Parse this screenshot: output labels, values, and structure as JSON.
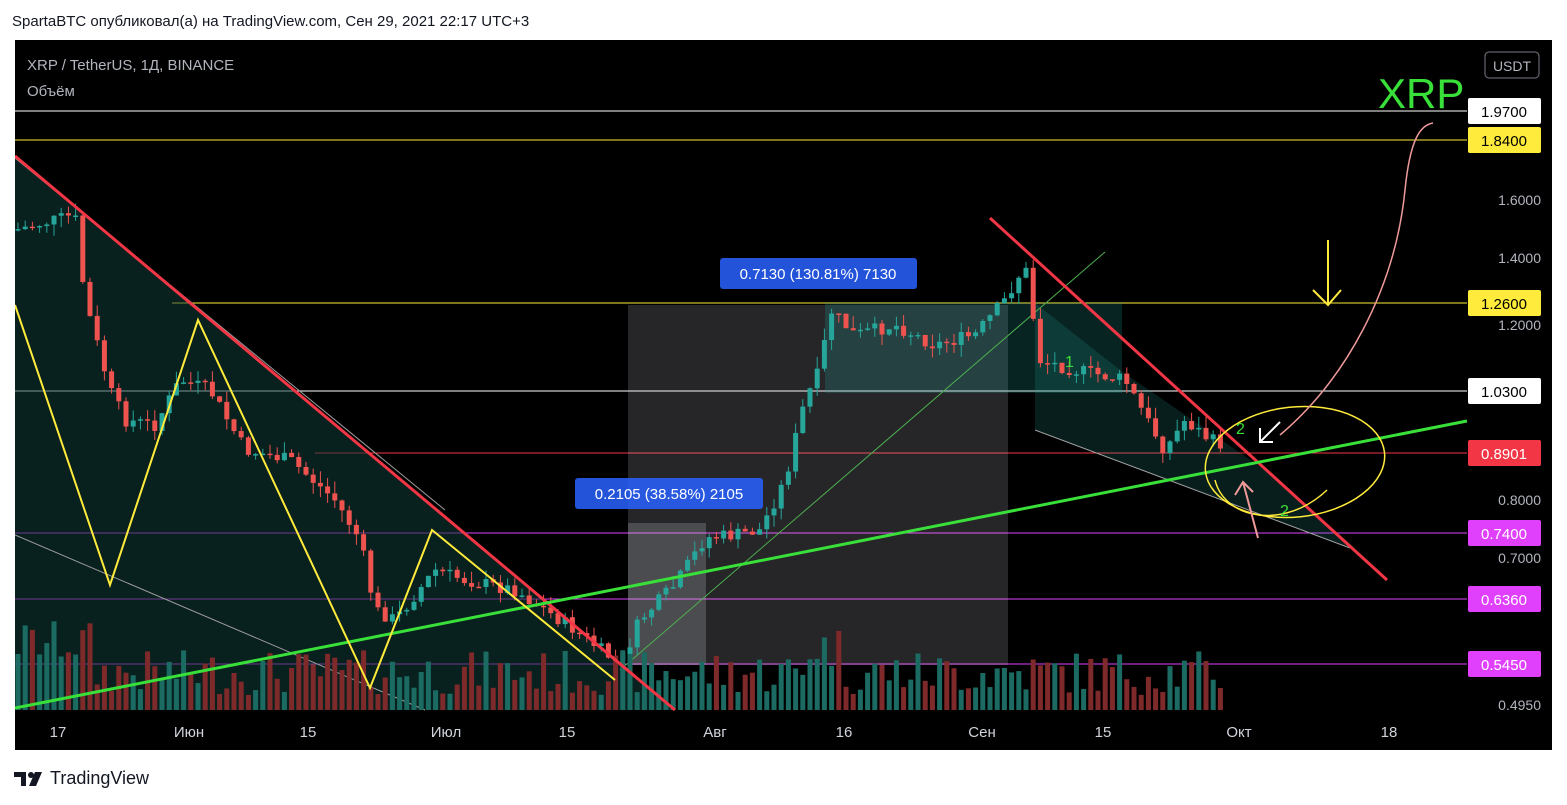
{
  "header": {
    "published_by": "SpartaBTC опубликовал(а) на TradingView.com, Сен 29, 2021 22:17 UTC+3"
  },
  "legend": {
    "symbol": "XRP / TetherUS, 1Д, BINANCE",
    "volume_label": "Объём",
    "currency_button": "USDT",
    "big_title": "XRP"
  },
  "footer": {
    "brand": "TradingView"
  },
  "chart_data": {
    "type": "candlestick",
    "pair": "XRP / TetherUS",
    "interval": "1Д",
    "exchange": "BINANCE",
    "currency": "USDT",
    "y_axis_ticks": [
      "1.6000",
      "1.4000",
      "1.2000",
      "0.8000",
      "0.7000",
      "0.4950"
    ],
    "x_axis_ticks": [
      "17",
      "Июн",
      "15",
      "Июл",
      "15",
      "Авг",
      "16",
      "Сен",
      "15",
      "Окт",
      "18"
    ],
    "level_labels": [
      {
        "value": "1.9700",
        "bg": "#ffffff",
        "fg": "#000000",
        "line": "#ffffff"
      },
      {
        "value": "1.8400",
        "bg": "#ffeb3b",
        "fg": "#000000",
        "line": "#ffeb3b"
      },
      {
        "value": "1.2600",
        "bg": "#ffeb3b",
        "fg": "#000000",
        "line": "#ffeb3b"
      },
      {
        "value": "1.0300",
        "bg": "#ffffff",
        "fg": "#000000",
        "line": "#ffffff"
      },
      {
        "value": "0.8901",
        "bg": "#f23645",
        "fg": "#ffffff",
        "line": "#f23645"
      },
      {
        "value": "0.7400",
        "bg": "#e040fb",
        "fg": "#ffffff",
        "line": "#e040fb"
      },
      {
        "value": "0.6360",
        "bg": "#e040fb",
        "fg": "#ffffff",
        "line": "#e040fb"
      },
      {
        "value": "0.5450",
        "bg": "#e040fb",
        "fg": "#ffffff",
        "line": "#e040fb"
      }
    ],
    "measurements": [
      {
        "text": "0.7130 (130.81%) 7130"
      },
      {
        "text": "0.2105 (38.58%) 2105"
      }
    ],
    "wave_labels": [
      "1",
      "2",
      "2"
    ],
    "colors": {
      "up": "#26a69a",
      "down": "#ef5350",
      "volume_up": "#1b6b63",
      "volume_down": "#7f2a2a",
      "resistance": "#f23645",
      "support": "#2ecc40",
      "zigzag": "#ffeb3b"
    }
  }
}
